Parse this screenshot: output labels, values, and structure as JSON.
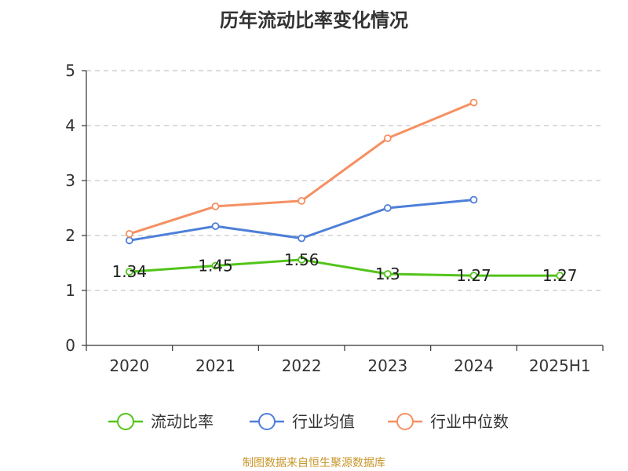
{
  "colors": {
    "series": [
      "#52c41a",
      "#4e7fd8",
      "#f59062"
    ],
    "source": "#c8962a",
    "grid": "#c8c8c8",
    "axis": "#333333"
  },
  "source_text": "制图数据来自恒生聚源数据库",
  "chart_data": {
    "type": "line",
    "title": "历年流动比率变化情况",
    "xlabel": "",
    "ylabel": "",
    "ylim": [
      0,
      5
    ],
    "yticks": [
      0,
      1,
      2,
      3,
      4,
      5
    ],
    "grid": true,
    "legend_position": "bottom",
    "categories": [
      "2020",
      "2021",
      "2022",
      "2023",
      "2024",
      "2025H1"
    ],
    "series": [
      {
        "name": "流动比率",
        "values": [
          1.34,
          1.45,
          1.56,
          1.3,
          1.27,
          1.27
        ],
        "labels": [
          "1.34",
          "1.45",
          "1.56",
          "1.3",
          "1.27",
          "1.27"
        ]
      },
      {
        "name": "行业均值",
        "values": [
          1.91,
          2.17,
          1.95,
          2.5,
          2.65,
          null
        ],
        "labels": null
      },
      {
        "name": "行业中位数",
        "values": [
          2.03,
          2.53,
          2.63,
          3.77,
          4.42,
          null
        ],
        "labels": null
      }
    ]
  }
}
